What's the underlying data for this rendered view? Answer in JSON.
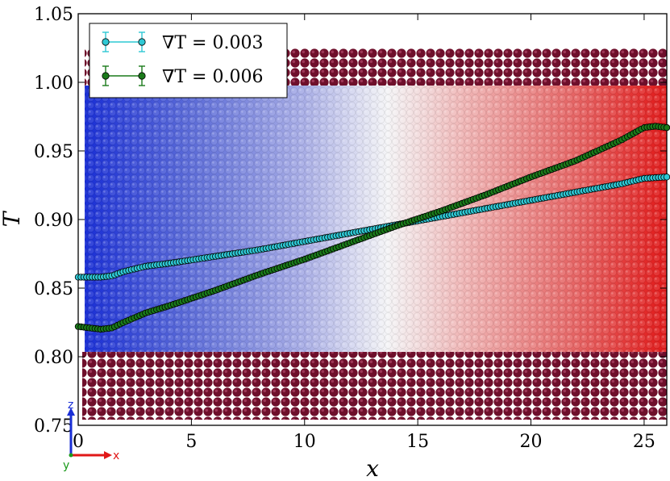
{
  "chart_data": {
    "type": "scatter",
    "title": "",
    "xlabel": "x",
    "ylabel": "T",
    "xlim": [
      0,
      26
    ],
    "ylim": [
      0.75,
      1.05
    ],
    "xticks": [
      "0",
      "5",
      "10",
      "15",
      "20",
      "25"
    ],
    "yticks": [
      "0.75",
      "0.80",
      "0.85",
      "0.90",
      "0.95",
      "1.00",
      "1.05"
    ],
    "legend_position": "top-left",
    "series": [
      {
        "name": "∇T = 0.003",
        "color": "#2ec8d4",
        "points": [
          [
            0,
            0.858
          ],
          [
            0.5,
            0.858
          ],
          [
            1,
            0.858
          ],
          [
            1.5,
            0.859
          ],
          [
            2,
            0.862
          ],
          [
            3,
            0.866
          ],
          [
            4,
            0.868
          ],
          [
            6,
            0.873
          ],
          [
            8,
            0.878
          ],
          [
            10,
            0.884
          ],
          [
            12,
            0.89
          ],
          [
            14,
            0.896
          ],
          [
            16,
            0.902
          ],
          [
            18,
            0.908
          ],
          [
            20,
            0.914
          ],
          [
            22,
            0.92
          ],
          [
            24,
            0.926
          ],
          [
            25,
            0.93
          ],
          [
            26,
            0.931
          ]
        ]
      },
      {
        "name": "∇T = 0.006",
        "color": "#1a7a1a",
        "points": [
          [
            0,
            0.822
          ],
          [
            0.5,
            0.821
          ],
          [
            1,
            0.82
          ],
          [
            1.5,
            0.821
          ],
          [
            2,
            0.825
          ],
          [
            3,
            0.832
          ],
          [
            4,
            0.837
          ],
          [
            6,
            0.848
          ],
          [
            8,
            0.86
          ],
          [
            10,
            0.871
          ],
          [
            12,
            0.883
          ],
          [
            14,
            0.895
          ],
          [
            16,
            0.906
          ],
          [
            18,
            0.918
          ],
          [
            20,
            0.931
          ],
          [
            22,
            0.943
          ],
          [
            24,
            0.958
          ],
          [
            25,
            0.967
          ],
          [
            25.5,
            0.968
          ],
          [
            26,
            0.967
          ]
        ]
      }
    ]
  },
  "triad": {
    "z": "z",
    "x": "x",
    "y": "y"
  }
}
